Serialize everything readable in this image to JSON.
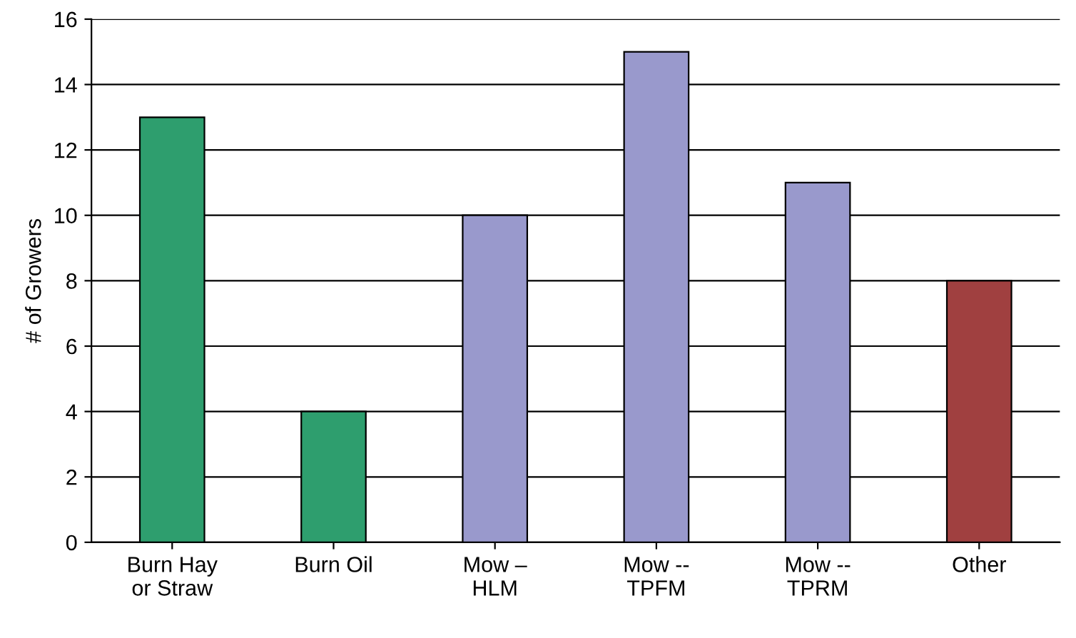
{
  "chart_data": {
    "type": "bar",
    "ylabel": "# of Growers",
    "categories": [
      "Burn Hay\nor Straw",
      "Burn Oil",
      "Mow –\nHLM",
      "Mow --\nTPFM",
      "Mow --\nTPRM",
      "Other"
    ],
    "values": [
      13,
      4,
      10,
      15,
      11,
      8
    ],
    "colors": [
      "#2e9e6e",
      "#2e9e6e",
      "#9999cc",
      "#9999cc",
      "#9999cc",
      "#a04040"
    ],
    "ylim": [
      0,
      16
    ],
    "yticks": [
      0,
      2,
      4,
      6,
      8,
      10,
      12,
      14,
      16
    ],
    "grid": "y"
  }
}
